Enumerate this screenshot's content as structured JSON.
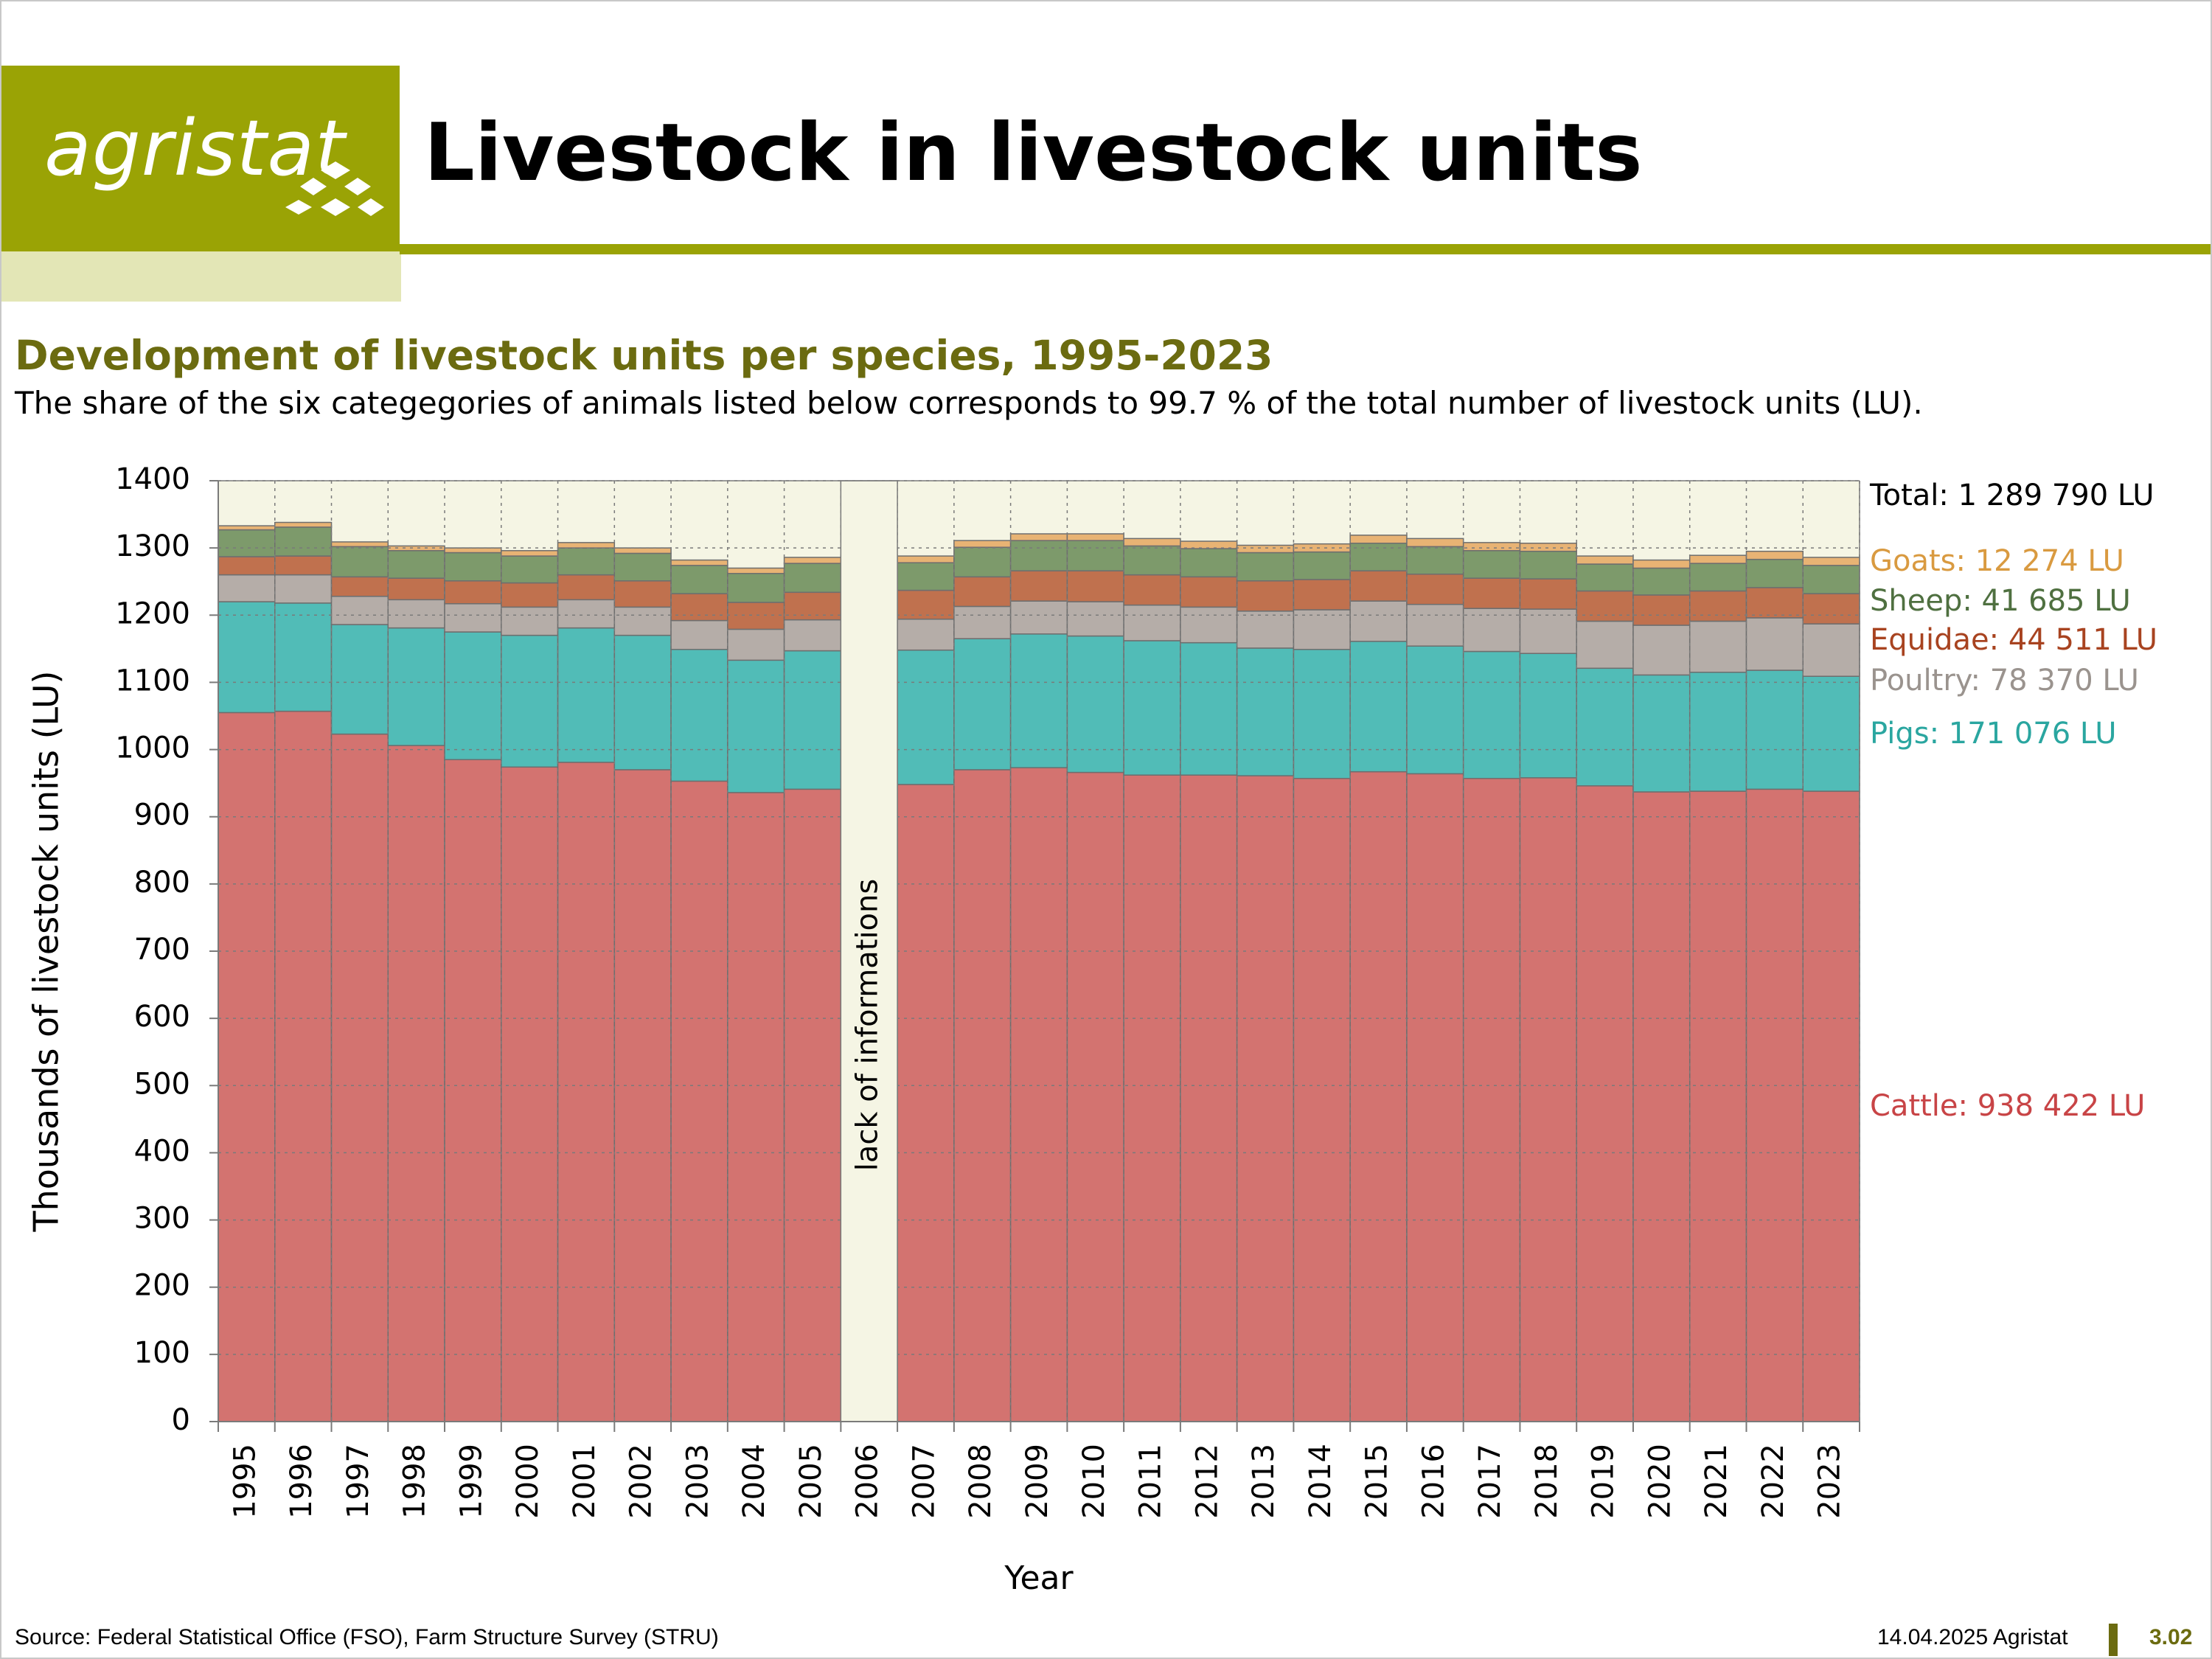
{
  "header": {
    "logo_text": "agristat",
    "title": "Livestock in livestock units"
  },
  "chart_data": {
    "type": "bar",
    "stacked": true,
    "title": "Development of livestock units per species, 1995-2023",
    "subtitle": "The share of the six categegories of animals listed below corresponds to 99.7 % of the total number of livestock units (LU).",
    "xlabel": "Year",
    "ylabel": "Thousands of livestock units (LU)",
    "ylim": [
      0,
      1400
    ],
    "yticks": [
      0,
      100,
      200,
      300,
      400,
      500,
      600,
      700,
      800,
      900,
      1000,
      1100,
      1200,
      1300,
      1400
    ],
    "grid": true,
    "categories": [
      "1995",
      "1996",
      "1997",
      "1998",
      "1999",
      "2000",
      "2001",
      "2002",
      "2003",
      "2004",
      "2005",
      "2006",
      "2007",
      "2008",
      "2009",
      "2010",
      "2011",
      "2012",
      "2013",
      "2014",
      "2015",
      "2016",
      "2017",
      "2018",
      "2019",
      "2020",
      "2021",
      "2022",
      "2023"
    ],
    "gap_category": "2006",
    "gap_label": "lack of informations",
    "total_label": "Total: 1 289 790 LU",
    "series": [
      {
        "name": "Cattle",
        "label": "Cattle: 938 422 LU",
        "color": "#d37370",
        "values": [
          1055,
          1057,
          1023,
          1006,
          985,
          974,
          981,
          970,
          953,
          936,
          941,
          null,
          948,
          970,
          973,
          966,
          962,
          962,
          961,
          957,
          967,
          964,
          957,
          958,
          946,
          937,
          938,
          941,
          938
        ]
      },
      {
        "name": "Pigs",
        "label": "Pigs: 171 076 LU",
        "color": "#51bcb7",
        "values": [
          165,
          161,
          163,
          175,
          190,
          196,
          200,
          200,
          196,
          197,
          206,
          null,
          200,
          195,
          199,
          203,
          200,
          197,
          190,
          192,
          194,
          190,
          189,
          185,
          175,
          174,
          177,
          177,
          171
        ]
      },
      {
        "name": "Poultry",
        "label": "Poultry: 78 370 LU",
        "color": "#b5ada8",
        "values": [
          40,
          42,
          42,
          42,
          42,
          42,
          42,
          42,
          43,
          46,
          46,
          null,
          46,
          48,
          49,
          51,
          53,
          53,
          55,
          59,
          60,
          62,
          64,
          66,
          70,
          74,
          76,
          78,
          78
        ]
      },
      {
        "name": "Equidae",
        "label": "Equidae: 44 511 LU",
        "color": "#c0714e",
        "values": [
          27,
          28,
          29,
          32,
          34,
          36,
          37,
          39,
          40,
          40,
          41,
          null,
          43,
          44,
          45,
          46,
          45,
          45,
          45,
          45,
          45,
          45,
          45,
          45,
          45,
          45,
          45,
          45,
          45
        ]
      },
      {
        "name": "Sheep",
        "label": "Sheep: 41 685 LU",
        "color": "#7d9a6b",
        "values": [
          40,
          43,
          45,
          41,
          42,
          40,
          40,
          41,
          42,
          43,
          43,
          null,
          41,
          44,
          45,
          45,
          43,
          42,
          42,
          41,
          41,
          41,
          41,
          41,
          40,
          40,
          41,
          42,
          42
        ]
      },
      {
        "name": "Goats",
        "label": "Goats: 12 274 LU",
        "color": "#e8b374",
        "values": [
          6,
          7,
          7,
          7,
          7,
          8,
          8,
          8,
          8,
          8,
          9,
          null,
          10,
          10,
          10,
          10,
          11,
          11,
          11,
          12,
          12,
          12,
          12,
          12,
          12,
          12,
          12,
          12,
          12
        ]
      }
    ],
    "label_colors": {
      "Total": "#000000",
      "Goats": "#d99a40",
      "Sheep": "#4f7040",
      "Equidae": "#a84320",
      "Poultry": "#9a938e",
      "Pigs": "#2aa6a0",
      "Cattle": "#c84446"
    }
  },
  "footer": {
    "source": "Source: Federal Statistical Office (FSO), Farm Structure Survey (STRU)",
    "date": "14.04.2025 Agristat",
    "page": "3.02"
  }
}
